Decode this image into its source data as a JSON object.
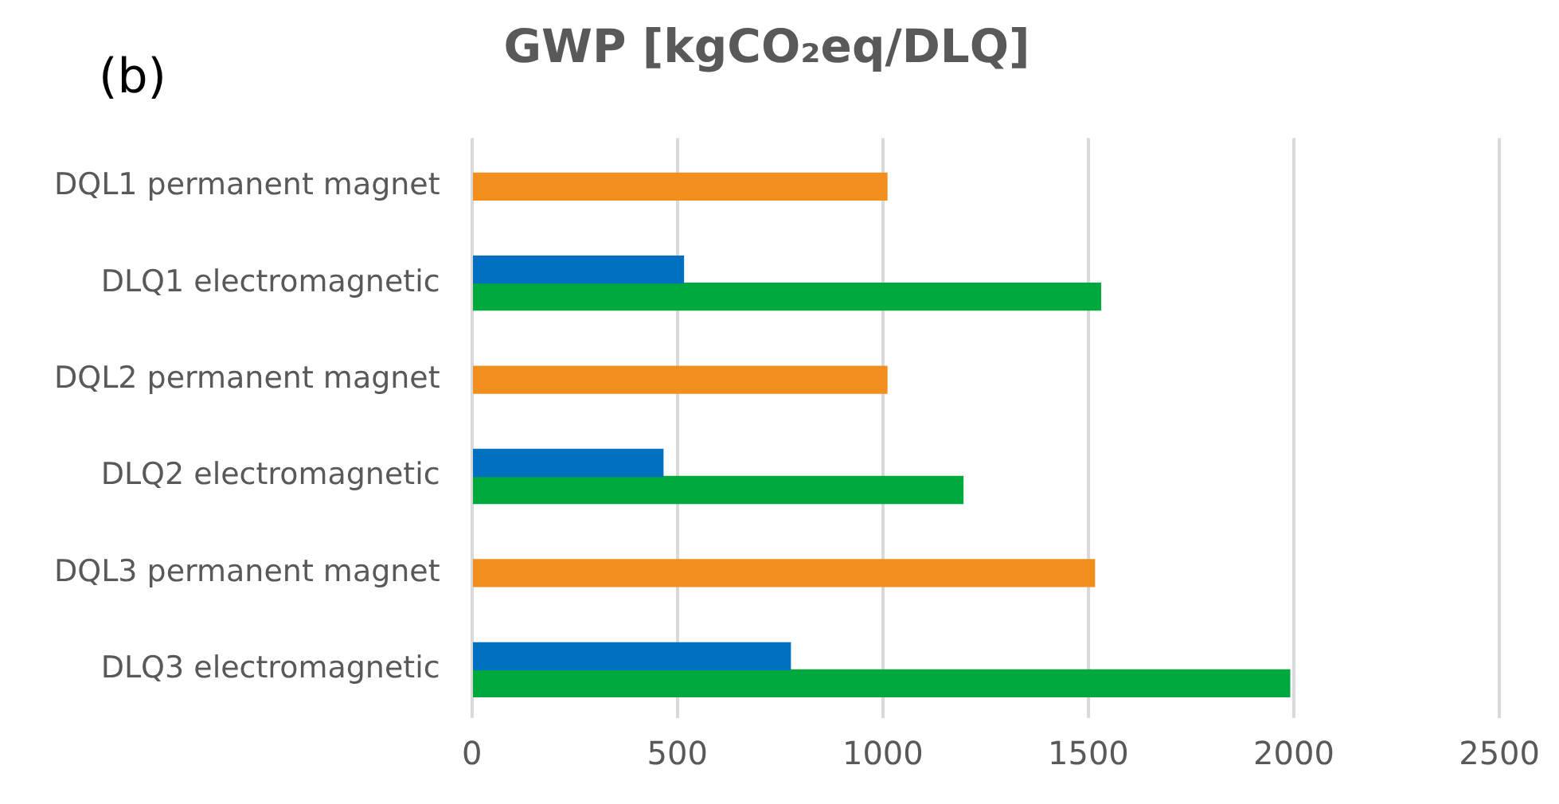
{
  "chart_data": {
    "type": "bar",
    "orientation": "horizontal",
    "title": "GWP [kgCO₂eq/DLQ]",
    "annotations": [
      "(b)"
    ],
    "categories": [
      "DQL1 permanent magnet",
      "DLQ1 electromagnetic",
      "DQL2 permanent magnet",
      "DLQ2 electromagnetic",
      "DQL3 permanent magnet",
      "DLQ3 electromagnetic"
    ],
    "series": [
      {
        "color": "#0070c0",
        "values": [
          null,
          515,
          null,
          465,
          null,
          775
        ]
      },
      {
        "color": "#f28e1e",
        "values": [
          1010,
          null,
          1010,
          null,
          1515,
          null
        ]
      },
      {
        "color": "#00a83e",
        "values": [
          null,
          1530,
          null,
          1195,
          null,
          1990
        ]
      }
    ],
    "xlim": [
      0,
      2500
    ],
    "xticks": [
      0,
      500,
      1000,
      1500,
      2000,
      2500
    ],
    "grid": "x",
    "legend": false
  }
}
